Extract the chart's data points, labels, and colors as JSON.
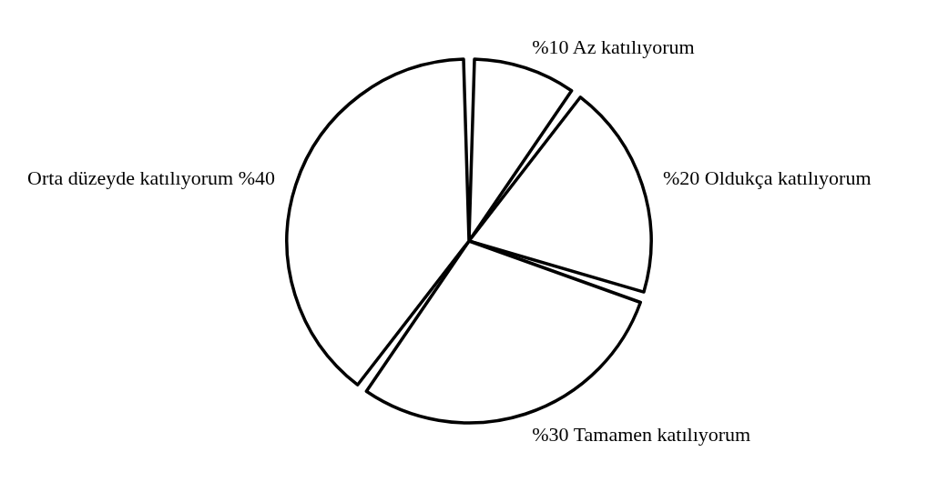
{
  "chart_data": {
    "type": "pie",
    "categories": [
      "Az katılıyorum",
      "Oldukça katılıyorum",
      "Tamamen katılıyorum",
      "Orta düzeyde katılıyorum"
    ],
    "values": [
      10,
      20,
      30,
      40
    ],
    "value_labels": [
      "%10",
      "%20",
      "%30",
      "%40"
    ],
    "colors": [
      "#ffffff",
      "#ffffff",
      "#ffffff",
      "#ffffff"
    ]
  }
}
